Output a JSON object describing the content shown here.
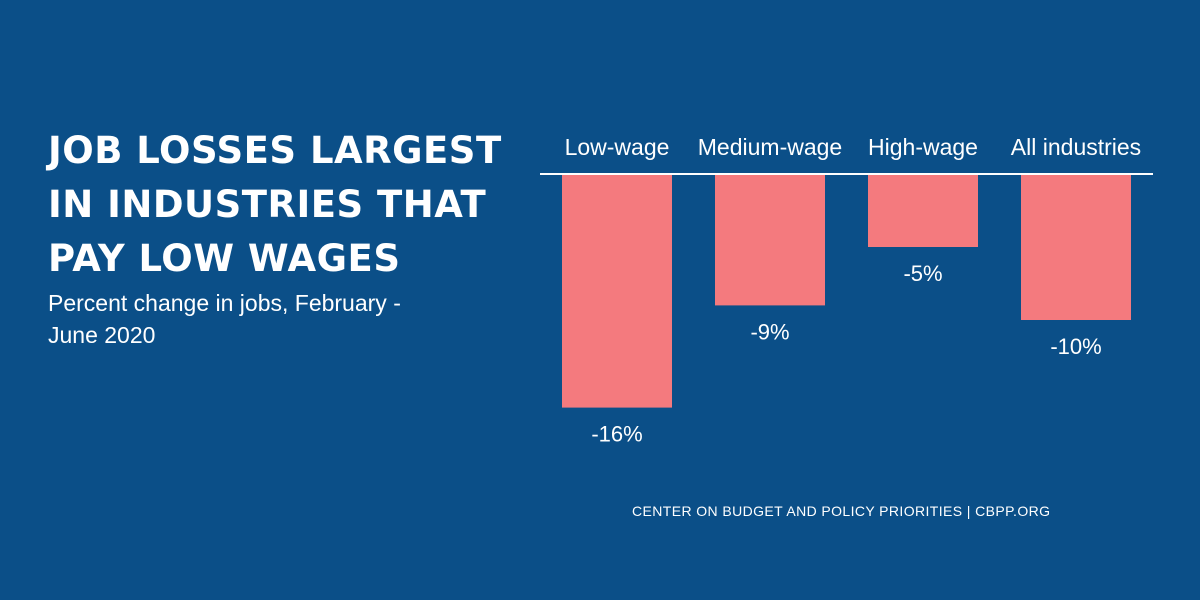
{
  "chart_data": {
    "type": "bar",
    "title_lines": [
      "JOB LOSSES LARGEST",
      "IN INDUSTRIES THAT",
      "PAY LOW WAGES"
    ],
    "subtitle_lines": [
      "Percent change in jobs, February -",
      "June 2020"
    ],
    "categories": [
      "Low-wage",
      "Medium-wage",
      "High-wage",
      "All industries"
    ],
    "values": [
      -16,
      -9,
      -5,
      -10
    ],
    "value_labels": [
      "-16%",
      "-9%",
      "-5%",
      "-10%"
    ],
    "ylim": [
      -16,
      0
    ],
    "grid": false,
    "legend": "none",
    "bar_color": "#f47a7e",
    "axis_color": "#ffffff",
    "background_color": "#0b4f88",
    "source": "CENTER ON BUDGET AND POLICY PRIORITIES | CBPP.ORG"
  }
}
